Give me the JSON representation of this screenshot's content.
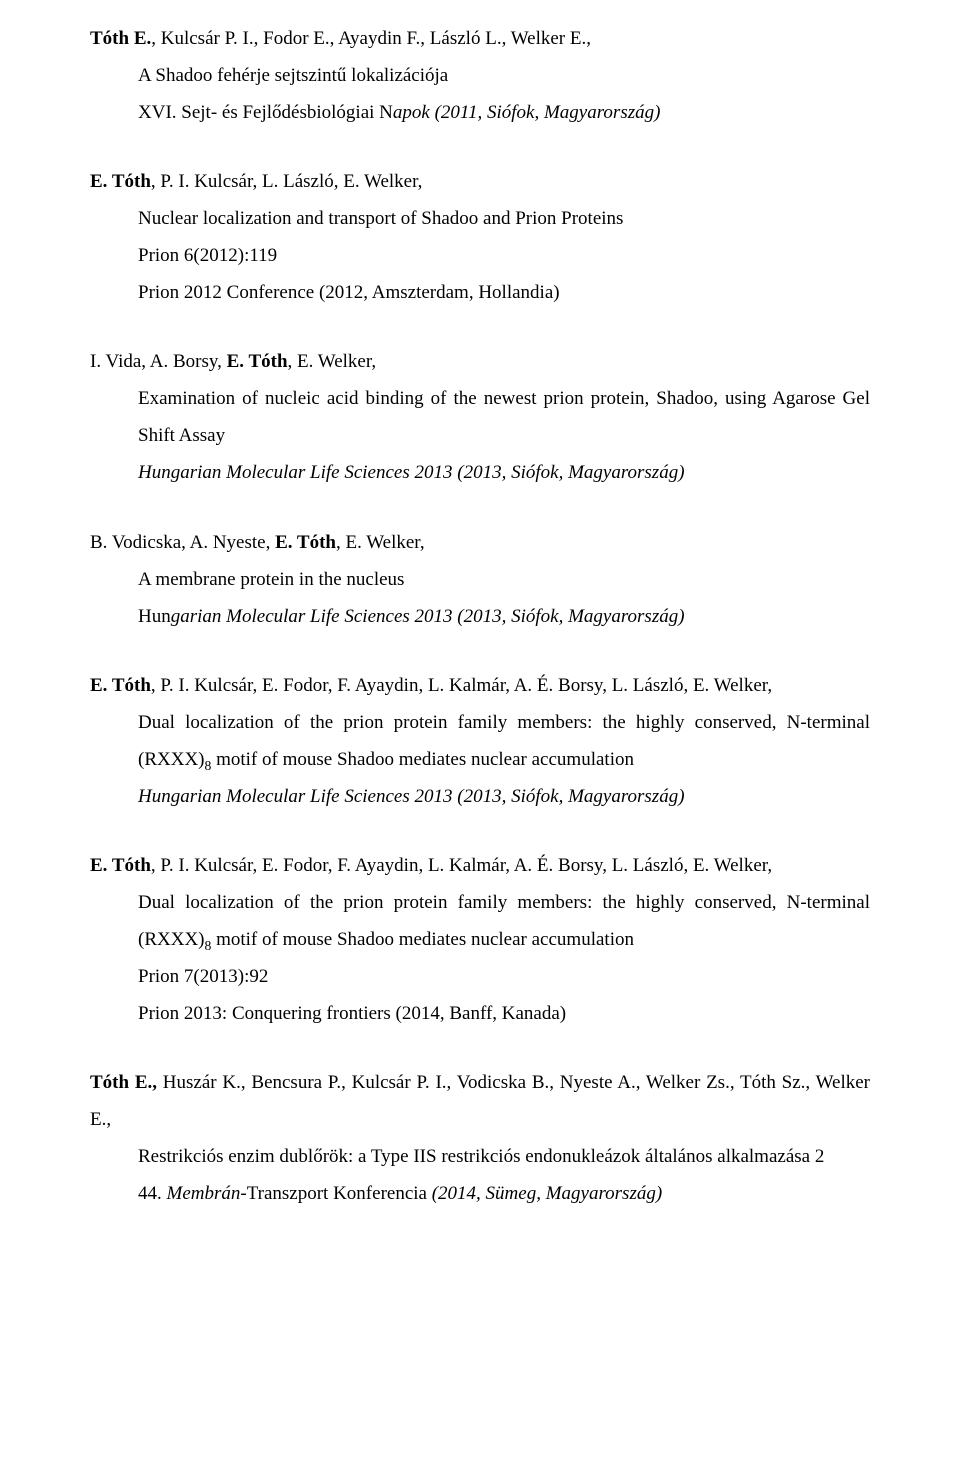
{
  "entries": [
    {
      "authors_pre_bold": "Tóth E.",
      "authors_post_bold": ", Kulcsár P. I., Fodor E., Ayaydin F., László L., Welker E.,",
      "title": "A Shadoo fehérje sejtszintű lokalizációja",
      "title_class": "title-line",
      "venue_class": "venue",
      "venue_pre_italic": "XVI. Sejt- és Fejlődésbiológiai N",
      "venue_italic": "apok (2011, Siófok, Magyarország)",
      "venue_post_italic": "",
      "extra_lines": []
    },
    {
      "authors_pre_bold": "E. Tóth",
      "authors_post_bold": ", P. I. Kulcsár, L. László, E. Welker,",
      "title": "Nuclear localization and transport of Shadoo and Prion Proteins",
      "title_class": "title-line",
      "venue_class": "venue",
      "venue_pre_italic": "Prion 6(2012):119",
      "venue_italic": "",
      "venue_post_italic": "",
      "extra_lines": [
        "Prion 2012 Conference (2012, Amszterdam, Hollandia)"
      ]
    },
    {
      "authors_pre_bold": "",
      "authors_pre_text": "I. Vida, A. Borsy, ",
      "authors_bold": "E. Tóth",
      "authors_post_bold": ", E. Welker,",
      "title": "Examination of nucleic acid binding of the newest prion protein, Shadoo, using Agarose Gel Shift Assay",
      "title_class": "title-line justify",
      "venue_class": "venue italic",
      "venue_pre_italic": "",
      "venue_italic": "Hungarian Molecular Life Sciences 2013 (2013, Siófok, Magyarország)",
      "venue_post_italic": "",
      "extra_lines": []
    },
    {
      "authors_pre_bold": "",
      "authors_pre_text": "B. Vodicska, A. Nyeste, ",
      "authors_bold": "E. Tóth",
      "authors_post_bold": ", E. Welker,",
      "title": "A membrane protein in the nucleus",
      "title_class": "title-line",
      "venue_class": "venue",
      "venue_pre_italic": "Hun",
      "venue_italic": "garian Molecular Life Sciences 2013 (2013, Siófok, Magyarország)",
      "venue_post_italic": "",
      "extra_lines": []
    },
    {
      "authors_pre_bold": "E. Tóth",
      "authors_post_bold": ", P. I. Kulcsár, E. Fodor, F. Ayaydin, L. Kalmár, A. É. Borsy, L. László, E. Welker,",
      "title_html": true,
      "title": "Dual localization of the prion protein family members: the highly conserved, N-terminal (RXXX)<span class=\"sub\">8</span> motif of mouse Shadoo mediates nuclear accumulation",
      "title_class": "title-line justify",
      "venue_class": "venue italic",
      "venue_pre_italic": "",
      "venue_italic": "Hungarian Molecular Life Sciences 2013 (2013, Siófok, Magyarország)",
      "venue_post_italic": "",
      "extra_lines": []
    },
    {
      "authors_pre_bold": "E. Tóth",
      "authors_post_bold": ", P. I. Kulcsár, E. Fodor, F. Ayaydin, L. Kalmár, A. É. Borsy, L. László, E. Welker,",
      "title_html": true,
      "title": "Dual localization of the prion protein family members: the highly conserved, N-terminal (RXXX)<span class=\"sub\">8</span> motif of mouse Shadoo mediates nuclear accumulation",
      "title_class": "title-line justify",
      "venue_class": "venue",
      "venue_pre_italic": "Prion 7(2013):92",
      "venue_italic": "",
      "venue_post_italic": "",
      "extra_lines": [
        "Prion 2013: Conquering frontiers (2014, Banff, Kanada)"
      ]
    },
    {
      "authors_pre_bold": "Tóth E.,",
      "authors_post_bold": " Huszár K., Bencsura P., Kulcsár P. I., Vodicska B., Nyeste A., Welker Zs., Tóth Sz., Welker E.,",
      "authors_justify": true,
      "title": "Restrikciós enzim dublőrök: a Type IIS restrikciós endonukleázok általános alkalmazása 2",
      "title_class": "title-line justify",
      "venue_class": "venue",
      "venue_pre_italic": " 44. ",
      "venue_italic": "Membrán-",
      "venue_post_italic": "Transzport Konferencia ",
      "venue_italic2": "(2014, Sümeg, Magyarország)",
      "extra_lines": []
    }
  ]
}
